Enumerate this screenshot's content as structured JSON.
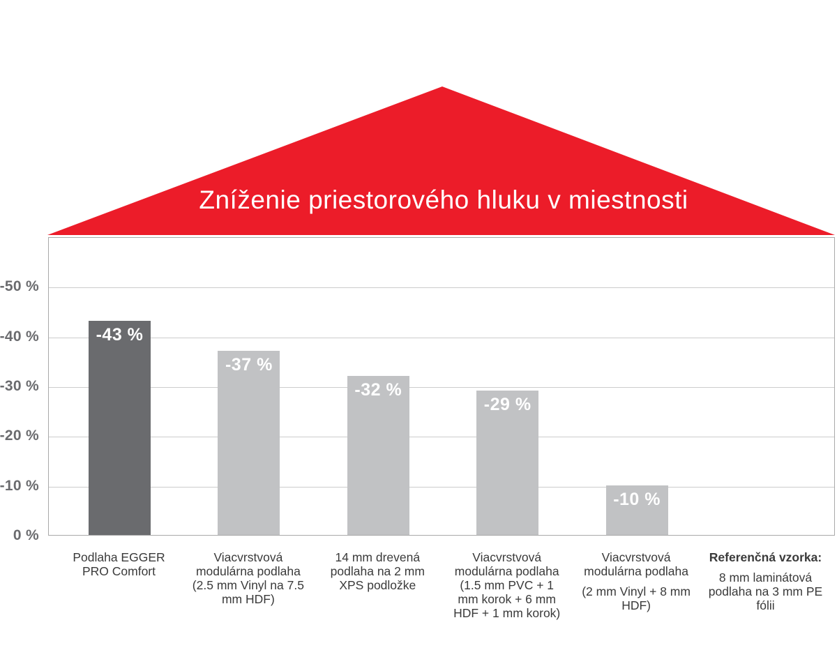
{
  "chart_data": {
    "type": "bar",
    "title": "Zníženie priestorového hluku v miestnosti",
    "xlabel": "",
    "ylabel": "",
    "unit": "%",
    "ylim": [
      0,
      -60
    ],
    "grid": true,
    "legend": "none",
    "yticks": [
      {
        "value": 0,
        "label": "0 %"
      },
      {
        "value": -10,
        "label": "-10 %"
      },
      {
        "value": -20,
        "label": "-20 %"
      },
      {
        "value": -30,
        "label": "-30 %"
      },
      {
        "value": -40,
        "label": "-40 %"
      },
      {
        "value": -50,
        "label": "-50 %"
      }
    ],
    "categories": [
      {
        "label": "Podlaha EGGER\nPRO Comfort",
        "sublabel": "",
        "label_bold": false,
        "value": -43,
        "value_label": "-43 %",
        "highlight": true
      },
      {
        "label": "Viacvrstvová\nmodulárna podlaha\n(2.5 mm Vinyl na 7.5\nmm HDF)",
        "sublabel": "",
        "label_bold": false,
        "value": -37,
        "value_label": "-37 %",
        "highlight": false
      },
      {
        "label": "14 mm drevená\npodlaha na 2 mm\nXPS podložke",
        "sublabel": "",
        "label_bold": false,
        "value": -32,
        "value_label": "-32 %",
        "highlight": false
      },
      {
        "label": "Viacvrstvová\nmodulárna podlaha\n(1.5 mm PVC + 1\nmm korok + 6 mm\nHDF + 1 mm korok)",
        "sublabel": "",
        "label_bold": false,
        "value": -29,
        "value_label": "-29 %",
        "highlight": false
      },
      {
        "label": "Viacvrstvová\nmodulárna podlaha",
        "sublabel": "(2 mm Vinyl + 8 mm\nHDF)",
        "label_bold": false,
        "value": -10,
        "value_label": "-10 %",
        "highlight": false
      },
      {
        "label": "Referenčná vzorka:",
        "sublabel": "8 mm laminátová\npodlaha na 3 mm PE\nfólii",
        "label_bold": true,
        "value": null,
        "value_label": "",
        "highlight": false
      }
    ],
    "colors": {
      "roof": "#EC1C29",
      "title_text": "#FFFFFF",
      "bar_highlight": "#6A6B6E",
      "bar_normal": "#C1C2C4",
      "axis_text": "#6A6B6E",
      "frame": "#A9A9A9",
      "gridline": "#CCCCCC",
      "category_text": "#3A3A3A",
      "background": "#FFFFFF"
    }
  }
}
